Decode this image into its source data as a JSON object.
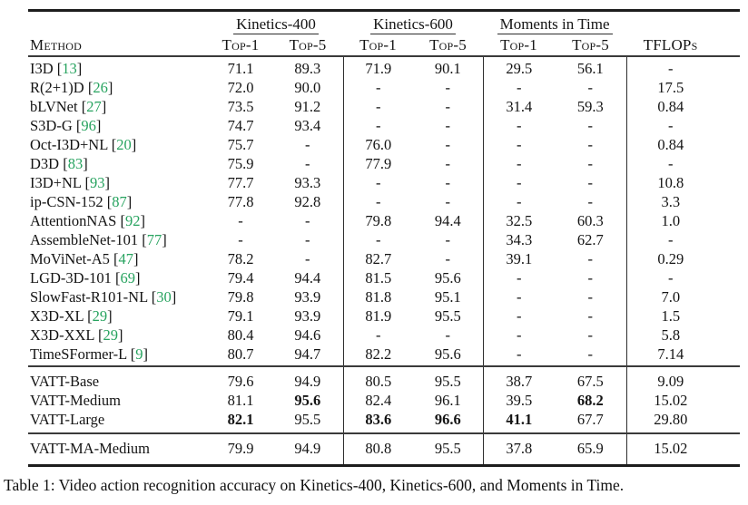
{
  "colors": {
    "citation_green": "#27a35f"
  },
  "table": {
    "method_header": "Method",
    "groups": [
      {
        "label": "Kinetics-400",
        "top1": "Top-1",
        "top5": "Top-5"
      },
      {
        "label": "Kinetics-600",
        "top1": "Top-1",
        "top5": "Top-5"
      },
      {
        "label": "Moments in Time",
        "top1": "Top-1",
        "top5": "Top-5"
      }
    ],
    "tflops_header": "TFLOPs",
    "sections": [
      {
        "rows": [
          {
            "method": "I3D",
            "cite": "13",
            "values": [
              "71.1",
              "89.3",
              "71.9",
              "90.1",
              "29.5",
              "56.1",
              "-"
            ],
            "bold": []
          },
          {
            "method": "R(2+1)D",
            "cite": "26",
            "values": [
              "72.0",
              "90.0",
              "-",
              "-",
              "-",
              "-",
              "17.5"
            ],
            "bold": []
          },
          {
            "method": "bLVNet",
            "cite": "27",
            "values": [
              "73.5",
              "91.2",
              "-",
              "-",
              "31.4",
              "59.3",
              "0.84"
            ],
            "bold": []
          },
          {
            "method": "S3D-G",
            "cite": "96",
            "values": [
              "74.7",
              "93.4",
              "-",
              "-",
              "-",
              "-",
              "-"
            ],
            "bold": []
          },
          {
            "method": "Oct-I3D+NL",
            "cite": "20",
            "values": [
              "75.7",
              "-",
              "76.0",
              "-",
              "-",
              "-",
              "0.84"
            ],
            "bold": []
          },
          {
            "method": "D3D",
            "cite": "83",
            "values": [
              "75.9",
              "-",
              "77.9",
              "-",
              "-",
              "-",
              "-"
            ],
            "bold": []
          },
          {
            "method": "I3D+NL",
            "cite": "93",
            "values": [
              "77.7",
              "93.3",
              "-",
              "-",
              "-",
              "-",
              "10.8"
            ],
            "bold": []
          },
          {
            "method": "ip-CSN-152",
            "cite": "87",
            "values": [
              "77.8",
              "92.8",
              "-",
              "-",
              "-",
              "-",
              "3.3"
            ],
            "bold": []
          },
          {
            "method": "AttentionNAS",
            "cite": "92",
            "values": [
              "-",
              "-",
              "79.8",
              "94.4",
              "32.5",
              "60.3",
              "1.0"
            ],
            "bold": []
          },
          {
            "method": "AssembleNet-101",
            "cite": "77",
            "values": [
              "-",
              "-",
              "-",
              "-",
              "34.3",
              "62.7",
              "-"
            ],
            "bold": []
          },
          {
            "method": "MoViNet-A5",
            "cite": "47",
            "values": [
              "78.2",
              "-",
              "82.7",
              "-",
              "39.1",
              "-",
              "0.29"
            ],
            "bold": []
          },
          {
            "method": "LGD-3D-101",
            "cite": "69",
            "values": [
              "79.4",
              "94.4",
              "81.5",
              "95.6",
              "-",
              "-",
              "-"
            ],
            "bold": []
          },
          {
            "method": "SlowFast-R101-NL",
            "cite": "30",
            "values": [
              "79.8",
              "93.9",
              "81.8",
              "95.1",
              "-",
              "-",
              "7.0"
            ],
            "bold": []
          },
          {
            "method": "X3D-XL",
            "cite": "29",
            "values": [
              "79.1",
              "93.9",
              "81.9",
              "95.5",
              "-",
              "-",
              "1.5"
            ],
            "bold": []
          },
          {
            "method": "X3D-XXL",
            "cite": "29",
            "values": [
              "80.4",
              "94.6",
              "-",
              "-",
              "-",
              "-",
              "5.8"
            ],
            "bold": []
          },
          {
            "method": "TimeSFormer-L",
            "cite": "9",
            "values": [
              "80.7",
              "94.7",
              "82.2",
              "95.6",
              "-",
              "-",
              "7.14"
            ],
            "bold": []
          }
        ]
      },
      {
        "rows": [
          {
            "method": "VATT-Base",
            "cite": null,
            "values": [
              "79.6",
              "94.9",
              "80.5",
              "95.5",
              "38.7",
              "67.5",
              "9.09"
            ],
            "bold": []
          },
          {
            "method": "VATT-Medium",
            "cite": null,
            "values": [
              "81.1",
              "95.6",
              "82.4",
              "96.1",
              "39.5",
              "68.2",
              "15.02"
            ],
            "bold": [
              1,
              5
            ]
          },
          {
            "method": "VATT-Large",
            "cite": null,
            "values": [
              "82.1",
              "95.5",
              "83.6",
              "96.6",
              "41.1",
              "67.7",
              "29.80"
            ],
            "bold": [
              0,
              2,
              3,
              4
            ]
          }
        ]
      },
      {
        "rows": [
          {
            "method": "VATT-MA-Medium",
            "cite": null,
            "values": [
              "79.9",
              "94.9",
              "80.8",
              "95.5",
              "37.8",
              "65.9",
              "15.02"
            ],
            "bold": []
          }
        ]
      }
    ]
  },
  "caption": "Table 1: Video action recognition accuracy on Kinetics-400, Kinetics-600, and Moments in Time."
}
